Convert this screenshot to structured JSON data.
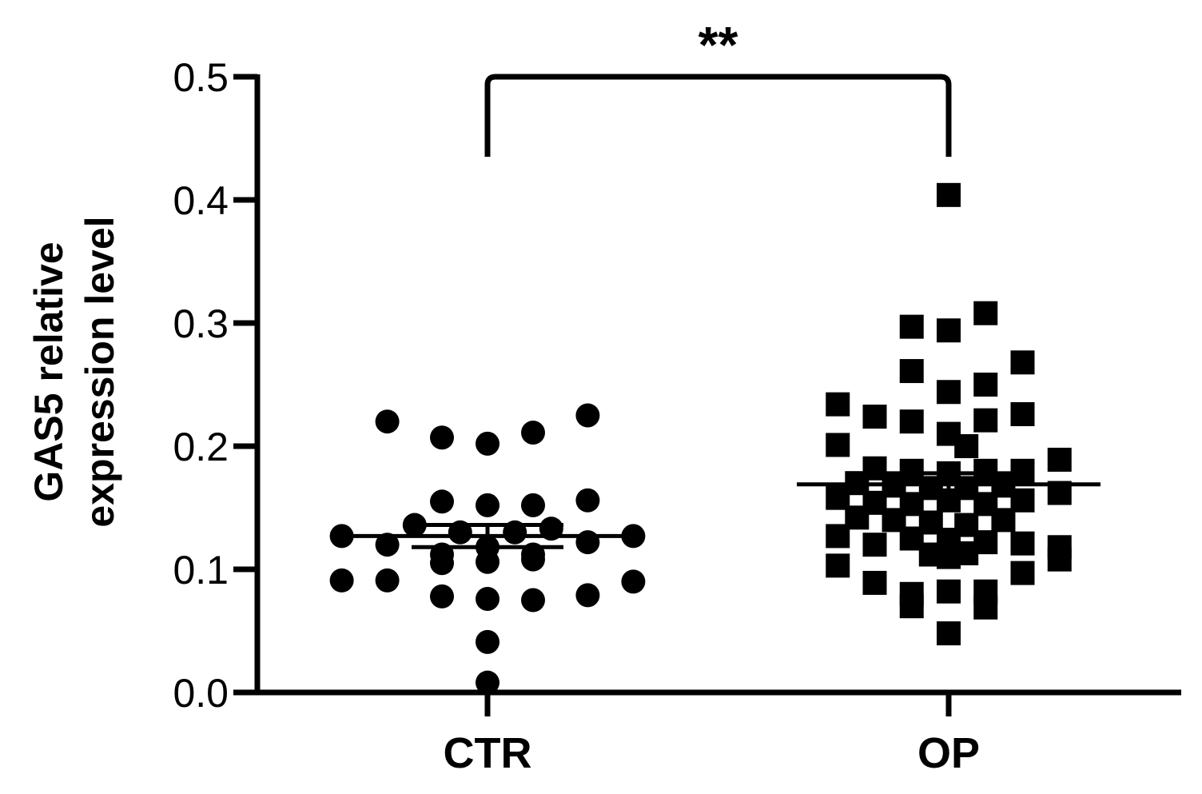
{
  "chart_data": {
    "type": "scatter",
    "subtype": "dot-plot-mean-sem",
    "title": "",
    "ylabel_line1": "GAS5 relative",
    "ylabel_line2": "expression level",
    "categories": [
      "CTR",
      "OP"
    ],
    "ylim": [
      0.0,
      0.5
    ],
    "yticks": [
      0.0,
      0.1,
      0.2,
      0.3,
      0.4,
      0.5
    ],
    "ytick_labels": [
      "0.0",
      "0.1",
      "0.2",
      "0.3",
      "0.4",
      "0.5"
    ],
    "grid": false,
    "significance": {
      "label": "**",
      "between": [
        "CTR",
        "OP"
      ]
    },
    "colors": {
      "marker": "#000000",
      "axis": "#000000"
    },
    "series": [
      {
        "category": "CTR",
        "marker": "circle",
        "mean": 0.127,
        "sem_low": 0.118,
        "sem_high": 0.136,
        "points": [
          {
            "x_offset": -0.55,
            "y": 0.22
          },
          {
            "x_offset": -0.25,
            "y": 0.207
          },
          {
            "x_offset": 0.0,
            "y": 0.202
          },
          {
            "x_offset": 0.25,
            "y": 0.211
          },
          {
            "x_offset": 0.55,
            "y": 0.225
          },
          {
            "x_offset": -0.25,
            "y": 0.155
          },
          {
            "x_offset": 0.0,
            "y": 0.152
          },
          {
            "x_offset": 0.25,
            "y": 0.152
          },
          {
            "x_offset": 0.55,
            "y": 0.156
          },
          {
            "x_offset": -0.4,
            "y": 0.136
          },
          {
            "x_offset": -0.15,
            "y": 0.13
          },
          {
            "x_offset": 0.15,
            "y": 0.13
          },
          {
            "x_offset": 0.35,
            "y": 0.133
          },
          {
            "x_offset": -0.8,
            "y": 0.127
          },
          {
            "x_offset": 0.8,
            "y": 0.127
          },
          {
            "x_offset": -0.55,
            "y": 0.12
          },
          {
            "x_offset": 0.55,
            "y": 0.122
          },
          {
            "x_offset": -0.25,
            "y": 0.112
          },
          {
            "x_offset": 0.0,
            "y": 0.118
          },
          {
            "x_offset": 0.25,
            "y": 0.112
          },
          {
            "x_offset": -0.25,
            "y": 0.105
          },
          {
            "x_offset": 0.0,
            "y": 0.106
          },
          {
            "x_offset": 0.25,
            "y": 0.108
          },
          {
            "x_offset": -0.8,
            "y": 0.091
          },
          {
            "x_offset": -0.55,
            "y": 0.091
          },
          {
            "x_offset": 0.8,
            "y": 0.09
          },
          {
            "x_offset": -0.25,
            "y": 0.078
          },
          {
            "x_offset": 0.0,
            "y": 0.076
          },
          {
            "x_offset": 0.25,
            "y": 0.075
          },
          {
            "x_offset": 0.55,
            "y": 0.079
          },
          {
            "x_offset": 0.0,
            "y": 0.041
          },
          {
            "x_offset": 0.0,
            "y": 0.008
          }
        ]
      },
      {
        "category": "OP",
        "marker": "square",
        "mean": 0.169,
        "sem_low": 0.16,
        "sem_high": 0.178,
        "points": [
          {
            "x_offset": 0.0,
            "y": 0.404
          },
          {
            "x_offset": 0.25,
            "y": 0.308
          },
          {
            "x_offset": -0.25,
            "y": 0.297
          },
          {
            "x_offset": 0.0,
            "y": 0.294
          },
          {
            "x_offset": 0.5,
            "y": 0.268
          },
          {
            "x_offset": -0.25,
            "y": 0.261
          },
          {
            "x_offset": 0.0,
            "y": 0.244
          },
          {
            "x_offset": 0.25,
            "y": 0.25
          },
          {
            "x_offset": -0.75,
            "y": 0.234
          },
          {
            "x_offset": -0.5,
            "y": 0.224
          },
          {
            "x_offset": -0.25,
            "y": 0.22
          },
          {
            "x_offset": 0.25,
            "y": 0.221
          },
          {
            "x_offset": 0.5,
            "y": 0.226
          },
          {
            "x_offset": 0.0,
            "y": 0.21
          },
          {
            "x_offset": 0.12,
            "y": 0.2
          },
          {
            "x_offset": -0.75,
            "y": 0.201
          },
          {
            "x_offset": 0.75,
            "y": 0.189
          },
          {
            "x_offset": -0.5,
            "y": 0.182
          },
          {
            "x_offset": -0.25,
            "y": 0.18
          },
          {
            "x_offset": 0.0,
            "y": 0.178
          },
          {
            "x_offset": 0.25,
            "y": 0.18
          },
          {
            "x_offset": 0.5,
            "y": 0.18
          },
          {
            "x_offset": -0.62,
            "y": 0.17
          },
          {
            "x_offset": -0.37,
            "y": 0.168
          },
          {
            "x_offset": -0.12,
            "y": 0.166
          },
          {
            "x_offset": 0.12,
            "y": 0.166
          },
          {
            "x_offset": 0.37,
            "y": 0.168
          },
          {
            "x_offset": -0.75,
            "y": 0.158
          },
          {
            "x_offset": -0.5,
            "y": 0.154
          },
          {
            "x_offset": -0.25,
            "y": 0.153
          },
          {
            "x_offset": 0.0,
            "y": 0.156
          },
          {
            "x_offset": 0.25,
            "y": 0.153
          },
          {
            "x_offset": 0.5,
            "y": 0.156
          },
          {
            "x_offset": 0.75,
            "y": 0.162
          },
          {
            "x_offset": -0.62,
            "y": 0.142
          },
          {
            "x_offset": -0.37,
            "y": 0.14
          },
          {
            "x_offset": -0.12,
            "y": 0.138
          },
          {
            "x_offset": 0.12,
            "y": 0.136
          },
          {
            "x_offset": 0.37,
            "y": 0.14
          },
          {
            "x_offset": -0.75,
            "y": 0.127
          },
          {
            "x_offset": -0.25,
            "y": 0.125
          },
          {
            "x_offset": 0.0,
            "y": 0.124
          },
          {
            "x_offset": 0.25,
            "y": 0.122
          },
          {
            "x_offset": 0.5,
            "y": 0.121
          },
          {
            "x_offset": -0.5,
            "y": 0.12
          },
          {
            "x_offset": 0.75,
            "y": 0.118
          },
          {
            "x_offset": -0.12,
            "y": 0.112
          },
          {
            "x_offset": 0.0,
            "y": 0.11
          },
          {
            "x_offset": 0.12,
            "y": 0.113
          },
          {
            "x_offset": 0.75,
            "y": 0.108
          },
          {
            "x_offset": -0.75,
            "y": 0.103
          },
          {
            "x_offset": 0.5,
            "y": 0.097
          },
          {
            "x_offset": -0.5,
            "y": 0.089
          },
          {
            "x_offset": -0.25,
            "y": 0.08
          },
          {
            "x_offset": 0.0,
            "y": 0.082
          },
          {
            "x_offset": 0.25,
            "y": 0.082
          },
          {
            "x_offset": -0.25,
            "y": 0.07
          },
          {
            "x_offset": 0.25,
            "y": 0.069
          },
          {
            "x_offset": 0.0,
            "y": 0.048
          }
        ]
      }
    ]
  }
}
